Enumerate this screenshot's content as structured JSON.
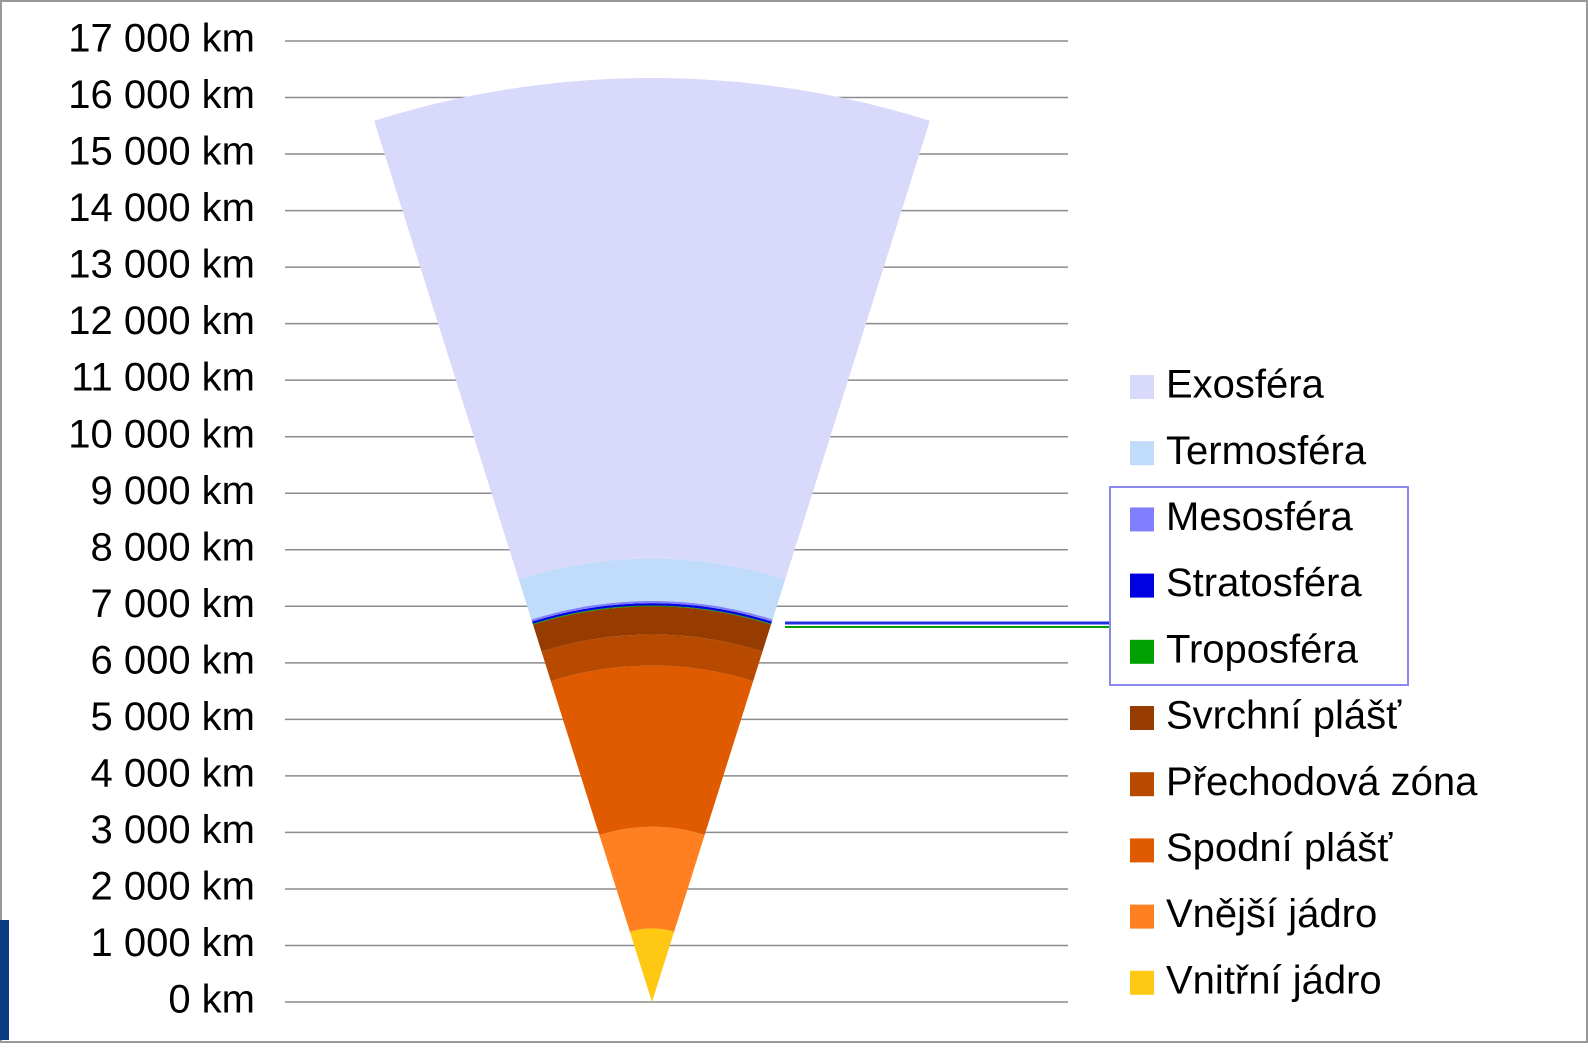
{
  "chart_data": {
    "type": "wedge",
    "ylim": [
      0,
      17000
    ],
    "yticks": [
      {
        "value": 0,
        "label": "0 km"
      },
      {
        "value": 1000,
        "label": "1 000 km"
      },
      {
        "value": 2000,
        "label": "2 000 km"
      },
      {
        "value": 3000,
        "label": "3 000 km"
      },
      {
        "value": 4000,
        "label": "4 000 km"
      },
      {
        "value": 5000,
        "label": "5 000 km"
      },
      {
        "value": 6000,
        "label": "6 000 km"
      },
      {
        "value": 7000,
        "label": "7 000 km"
      },
      {
        "value": 8000,
        "label": "8 000 km"
      },
      {
        "value": 9000,
        "label": "9 000 km"
      },
      {
        "value": 10000,
        "label": "10 000 km"
      },
      {
        "value": 11000,
        "label": "11 000 km"
      },
      {
        "value": 12000,
        "label": "12 000 km"
      },
      {
        "value": 13000,
        "label": "13 000 km"
      },
      {
        "value": 14000,
        "label": "14 000 km"
      },
      {
        "value": 15000,
        "label": "15 000 km"
      },
      {
        "value": 16000,
        "label": "16 000 km"
      },
      {
        "value": 17000,
        "label": "17 000 km"
      }
    ],
    "grid": true,
    "legend": "right",
    "series": [
      {
        "name": "Exosféra",
        "color": "#d9d9fb",
        "values": [
          8500
        ]
      },
      {
        "name": "Termosféra",
        "color": "#c0dcfa",
        "values": [
          750
        ]
      },
      {
        "name": "Mesosféra",
        "color": "#8080ff",
        "values": [
          40
        ]
      },
      {
        "name": "Stratosféra",
        "color": "#0000e0",
        "values": [
          40
        ]
      },
      {
        "name": "Troposféra",
        "color": "#00a000",
        "values": [
          15
        ]
      },
      {
        "name": "Svrchní plášť",
        "color": "#963c00",
        "values": [
          500
        ]
      },
      {
        "name": "Přechodová zóna",
        "color": "#b84a00",
        "values": [
          550
        ]
      },
      {
        "name": "Spodní plášť",
        "color": "#e05a00",
        "values": [
          2850
        ]
      },
      {
        "name": "Vnější jádro",
        "color": "#ff8020",
        "values": [
          1800
        ]
      },
      {
        "name": "Vnitřní jádro",
        "color": "#ffc812",
        "values": [
          1300
        ]
      }
    ]
  }
}
